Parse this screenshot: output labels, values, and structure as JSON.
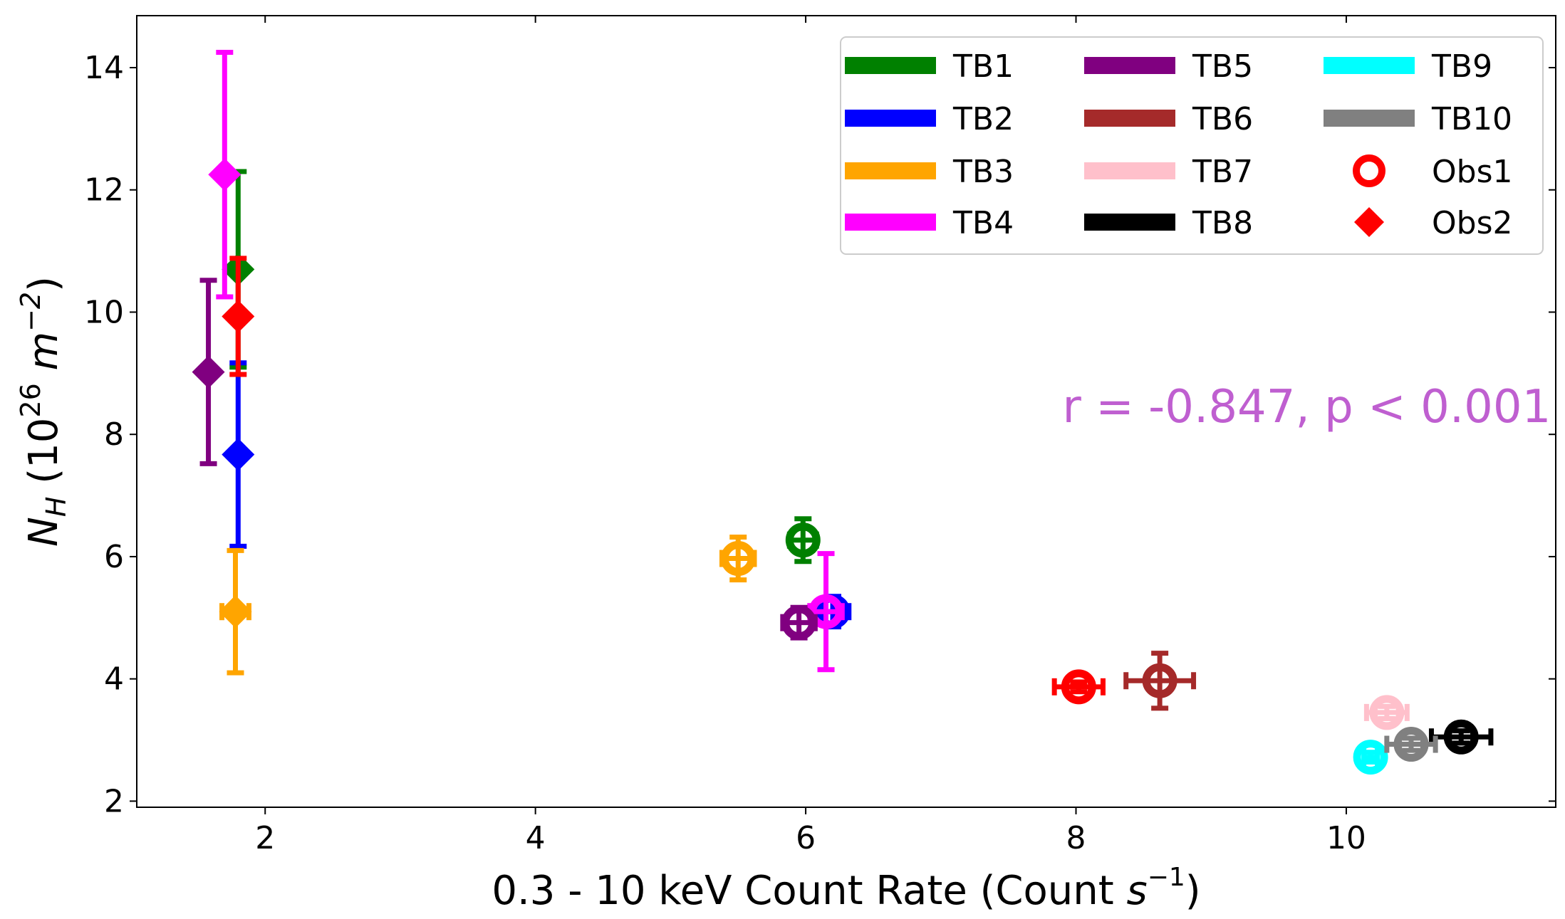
{
  "chart_data": {
    "type": "scatter",
    "title": "",
    "xlabel": {
      "main": "0.3 - 10 keV Count Rate (Count ",
      "var": "s",
      "sup": "−1",
      "close": ")"
    },
    "ylabel": {
      "var": "N",
      "sub": "H",
      "open": " (10",
      "sup": "26",
      "unit": " m",
      "unit_sup": "−2",
      "close": ")"
    },
    "xlim": [
      1.05,
      11.55
    ],
    "ylim": [
      1.9,
      14.85
    ],
    "xticks": [
      2,
      4,
      6,
      8,
      10
    ],
    "yticks": [
      2,
      4,
      6,
      8,
      10,
      12,
      14
    ],
    "xtick_labels": [
      "2",
      "4",
      "6",
      "8",
      "10"
    ],
    "ytick_labels": [
      "2",
      "4",
      "6",
      "8",
      "10",
      "12",
      "14"
    ],
    "grid": false,
    "legend_position": "upper right",
    "annotation": {
      "text": "r = -0.847, p < 0.001",
      "x": 7.9,
      "y": 8.2,
      "color": "#bf5fd0"
    },
    "series": [
      {
        "name": "TB1",
        "color": "#008000",
        "obs1": {
          "x": 5.98,
          "y": 6.27,
          "xerr": 0.1,
          "yerr": 0.35
        },
        "obs2": {
          "x": 1.8,
          "y": 10.7,
          "xerr": 0.02,
          "yerr": 1.6
        }
      },
      {
        "name": "TB2",
        "color": "#0000ff",
        "obs1": {
          "x": 6.2,
          "y": 5.1,
          "xerr": 0.12,
          "yerr": 0.25
        },
        "obs2": {
          "x": 1.8,
          "y": 7.67,
          "xerr": 0.02,
          "yerr": 1.5
        }
      },
      {
        "name": "TB3",
        "color": "#ffa500",
        "obs1": {
          "x": 5.5,
          "y": 5.97,
          "xerr": 0.12,
          "yerr": 0.35
        },
        "obs2": {
          "x": 1.78,
          "y": 5.1,
          "xerr": 0.1,
          "yerr": 1.0
        }
      },
      {
        "name": "TB4",
        "color": "#ff00ff",
        "obs1": {
          "x": 6.15,
          "y": 5.1,
          "xerr": 0.12,
          "yerr": 0.95
        },
        "obs2": {
          "x": 1.7,
          "y": 12.25,
          "xerr": 0.02,
          "yerr": 2.0
        }
      },
      {
        "name": "TB5",
        "color": "#800080",
        "obs1": {
          "x": 5.95,
          "y": 4.92,
          "xerr": 0.12,
          "yerr": 0.25
        },
        "obs2": {
          "x": 1.58,
          "y": 9.02,
          "xerr": 0.02,
          "yerr": 1.5
        }
      },
      {
        "name": "TB6",
        "color": "#a52a2a",
        "obs1": {
          "x": 8.62,
          "y": 3.97,
          "xerr": 0.25,
          "yerr": 0.45
        },
        "obs2": null
      },
      {
        "name": "TB7",
        "color": "#ffc0cb",
        "obs1": {
          "x": 10.3,
          "y": 3.45,
          "xerr": 0.15,
          "yerr": 0.1
        },
        "obs2": null
      },
      {
        "name": "TB8",
        "color": "#000000",
        "obs1": {
          "x": 10.85,
          "y": 3.05,
          "xerr": 0.22,
          "yerr": 0.1
        },
        "obs2": null
      },
      {
        "name": "TB9",
        "color": "#00ffff",
        "obs1": {
          "x": 10.18,
          "y": 2.72,
          "xerr": 0.05,
          "yerr": 0.08
        },
        "obs2": null
      },
      {
        "name": "TB10",
        "color": "#808080",
        "obs1": {
          "x": 10.48,
          "y": 2.93,
          "xerr": 0.18,
          "yerr": 0.1
        },
        "obs2": null
      },
      {
        "name": "Obs1",
        "color": "#ff0000",
        "marker": "open-circle",
        "obs1": {
          "x": 8.02,
          "y": 3.87,
          "xerr": 0.18,
          "yerr": 0.08
        },
        "obs2": null
      },
      {
        "name": "Obs2",
        "color": "#ff0000",
        "marker": "diamond",
        "obs1": null,
        "obs2": {
          "x": 1.8,
          "y": 9.93,
          "xerr": 0.03,
          "yerr": 0.95
        }
      }
    ],
    "legend": [
      {
        "label": "TB1",
        "color": "#008000",
        "kind": "line"
      },
      {
        "label": "TB2",
        "color": "#0000ff",
        "kind": "line"
      },
      {
        "label": "TB3",
        "color": "#ffa500",
        "kind": "line"
      },
      {
        "label": "TB4",
        "color": "#ff00ff",
        "kind": "line"
      },
      {
        "label": "TB5",
        "color": "#800080",
        "kind": "line"
      },
      {
        "label": "TB6",
        "color": "#a52a2a",
        "kind": "line"
      },
      {
        "label": "TB7",
        "color": "#ffc0cb",
        "kind": "line"
      },
      {
        "label": "TB8",
        "color": "#000000",
        "kind": "line"
      },
      {
        "label": "TB9",
        "color": "#00ffff",
        "kind": "line"
      },
      {
        "label": "TB10",
        "color": "#808080",
        "kind": "line"
      },
      {
        "label": "Obs1",
        "color": "#ff0000",
        "kind": "open-circle"
      },
      {
        "label": "Obs2",
        "color": "#ff0000",
        "kind": "diamond"
      }
    ]
  }
}
